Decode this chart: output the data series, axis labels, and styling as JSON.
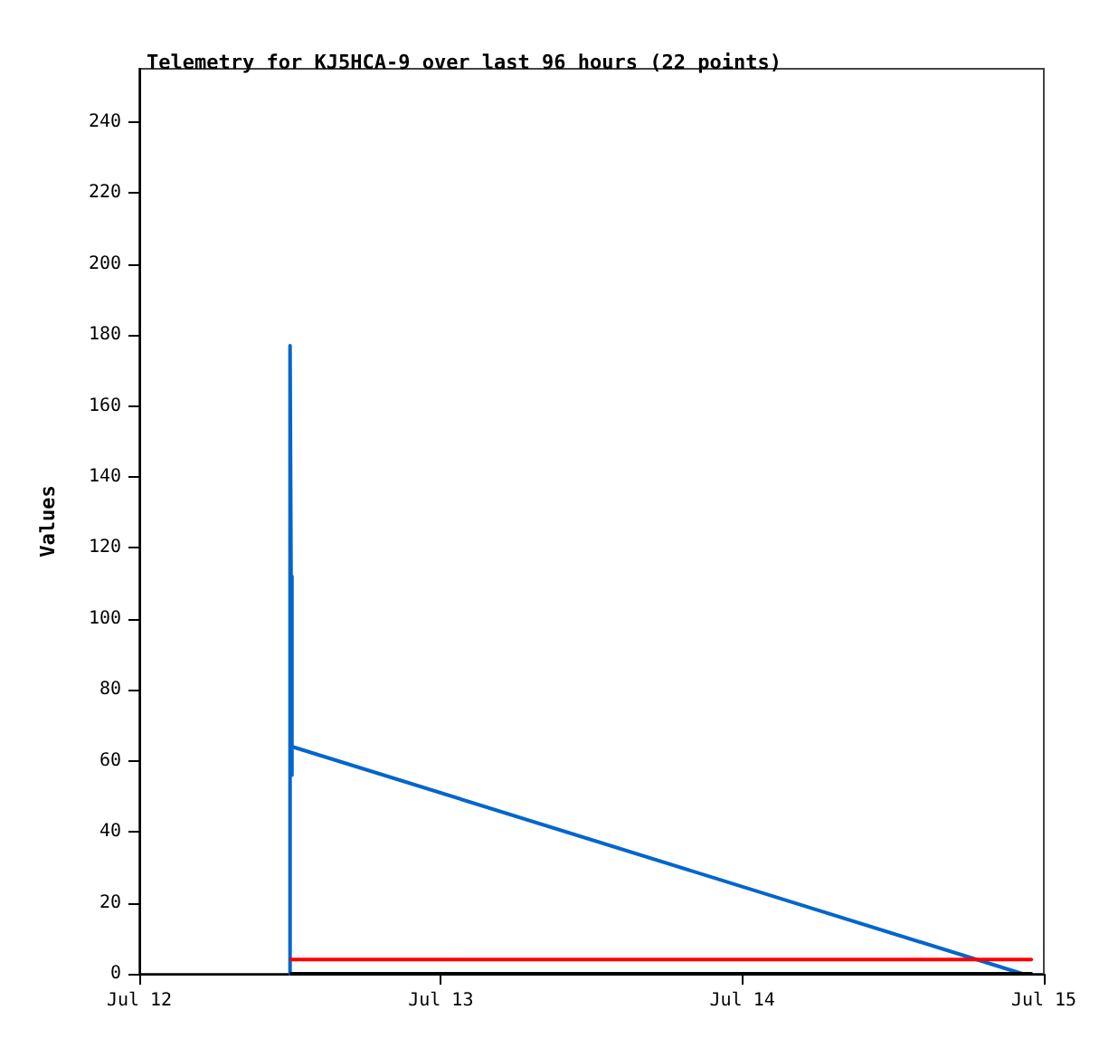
{
  "chart_data": {
    "type": "line",
    "title": "Telemetry for KJ5HCA-9 over last 96 hours (22 points)",
    "ylabel": "Values",
    "xlim": [
      "--07-12T00:00",
      "--07-15T00:00"
    ],
    "xticks": [
      {
        "value": "--07-12T00:00",
        "label": "Jul 12"
      },
      {
        "value": "--07-13T00:00",
        "label": "Jul 13"
      },
      {
        "value": "--07-14T00:00",
        "label": "Jul 14"
      },
      {
        "value": "--07-15T00:00",
        "label": "Jul 15"
      }
    ],
    "ylim": [
      0,
      255
    ],
    "yticks": [
      0,
      20,
      40,
      60,
      80,
      100,
      120,
      140,
      160,
      180,
      200,
      220,
      240
    ],
    "grid": false,
    "marker": "none",
    "line_style": "solid",
    "series": [
      {
        "color": "#0066cc",
        "x": [
          "--07-12T12:00",
          "--07-12T12:00",
          "--07-12T12:09",
          "--07-12T12:09",
          "--07-12T12:09",
          "--07-14T22:18"
        ],
        "values": [
          0,
          177,
          56,
          112,
          64,
          0
        ]
      },
      {
        "color": "#ff0000",
        "x": [
          "--07-12T12:06",
          "--07-14T23:00"
        ],
        "values": [
          4,
          4
        ]
      },
      {
        "color": "#000000",
        "x": [
          "--07-12T12:06",
          "--07-14T23:00"
        ],
        "values": [
          0,
          0
        ]
      }
    ]
  }
}
